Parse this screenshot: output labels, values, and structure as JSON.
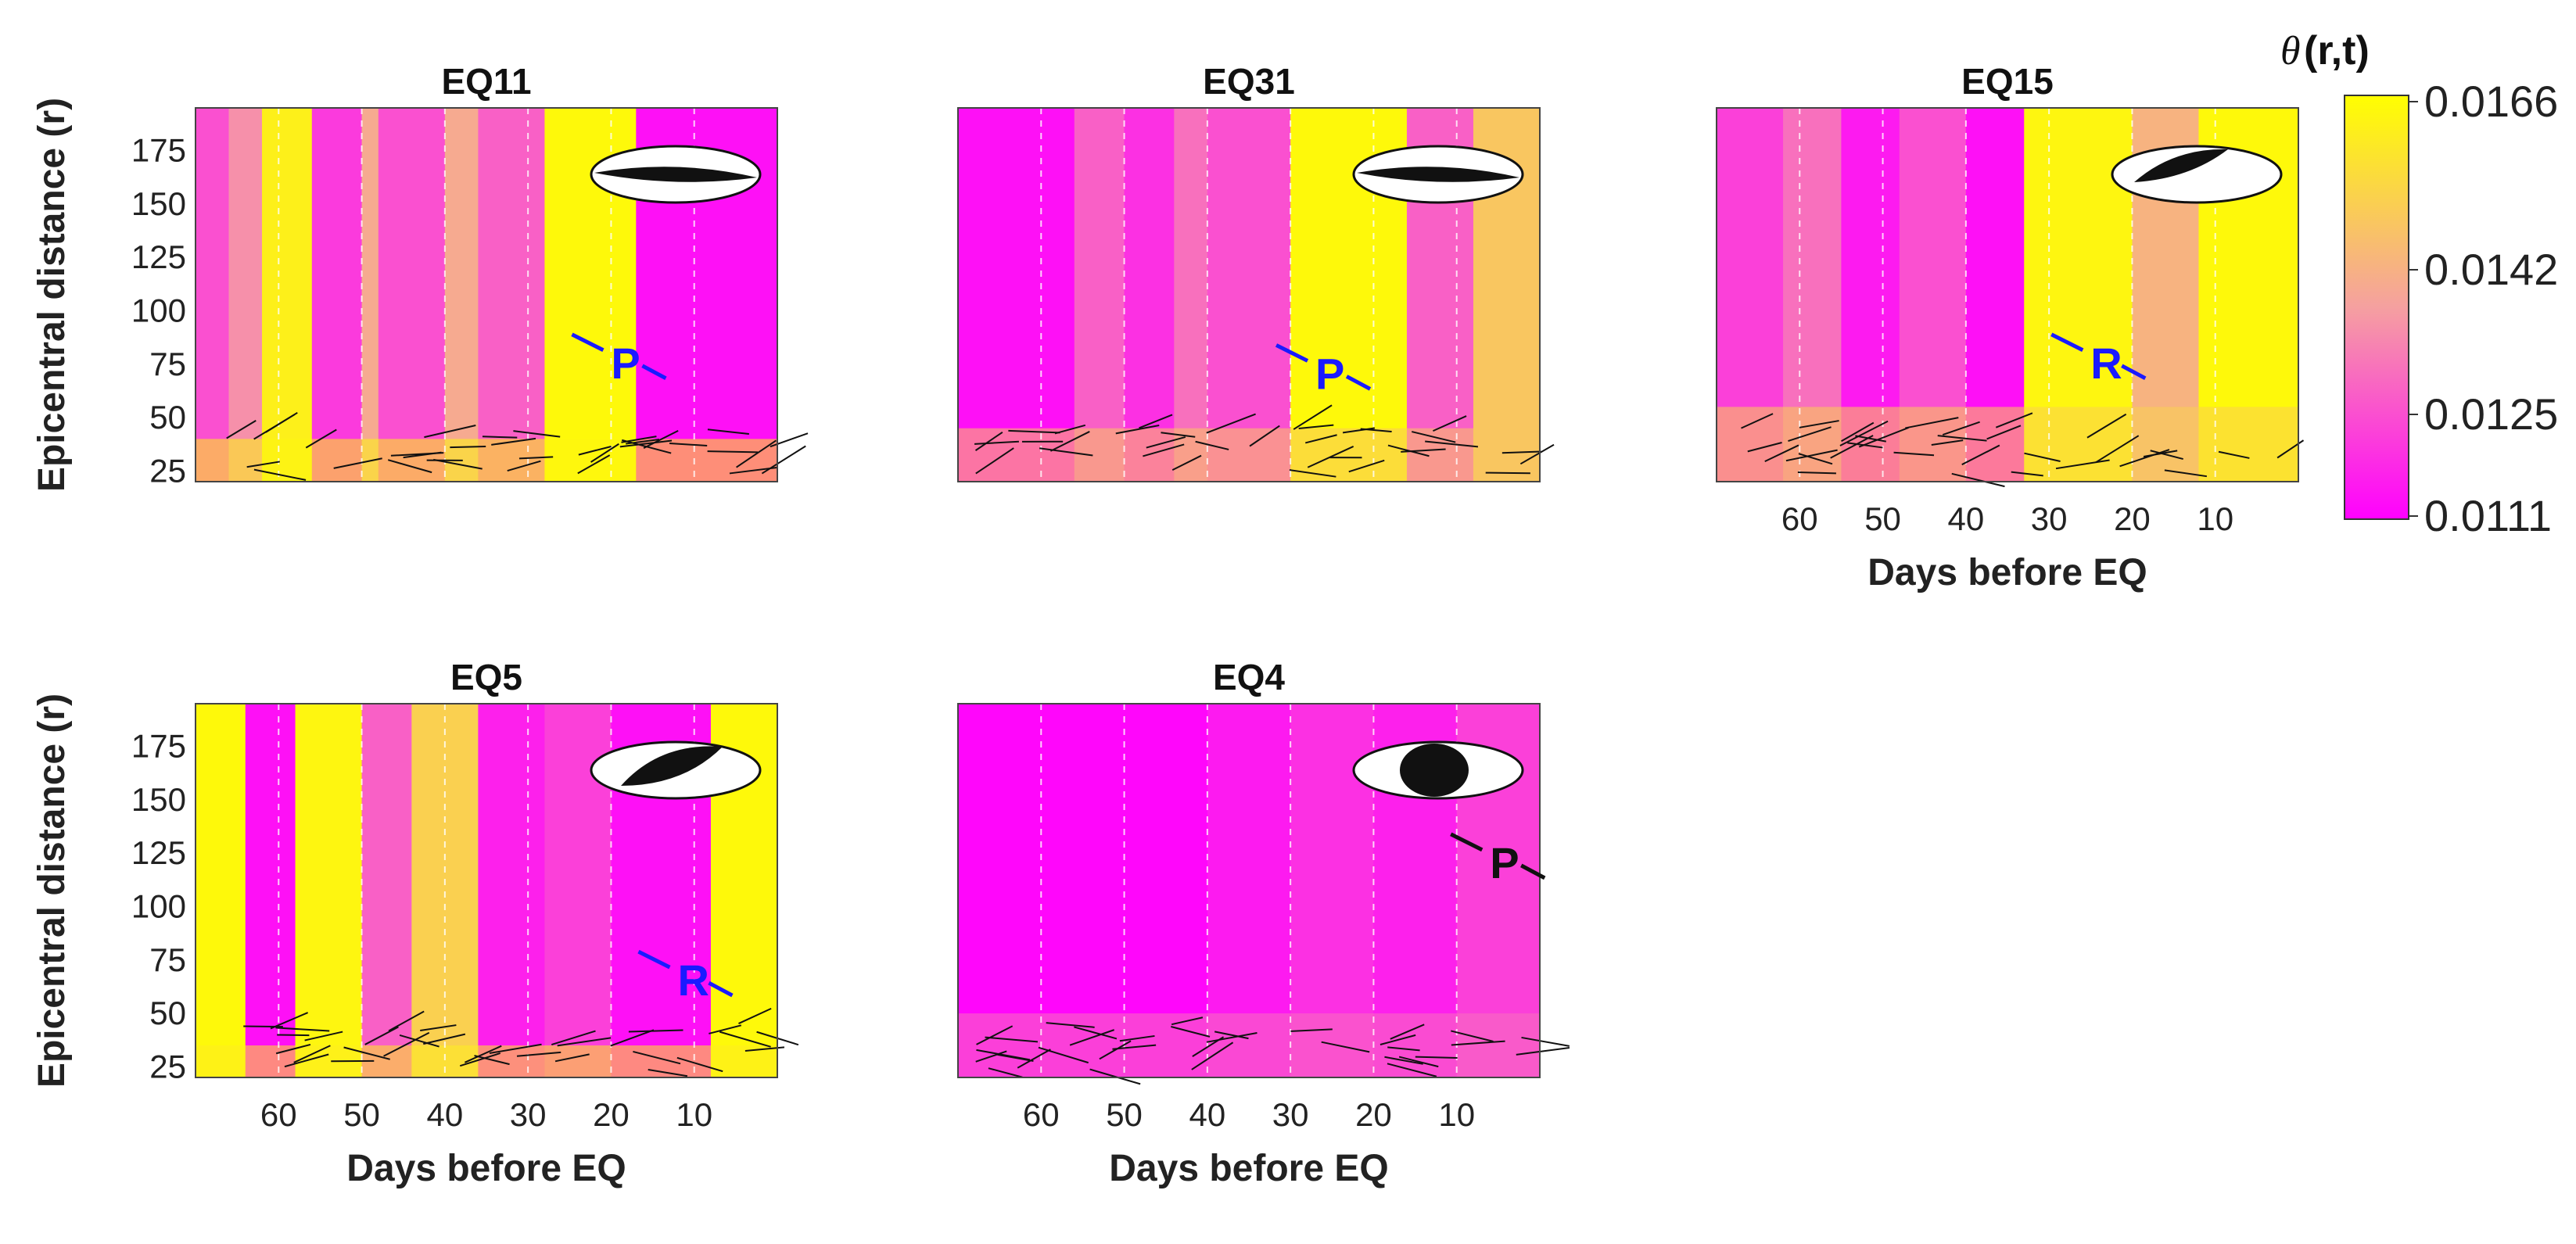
{
  "chart_data": {
    "type": "heatmap",
    "colormap": {
      "low": "#ff00ff",
      "mid": "#f5a0a0",
      "high": "#ffff00"
    },
    "colorbar": {
      "label_symbol": "θ",
      "label_suffix": "(r,t)",
      "ticks": [
        "0.0166",
        "0.0142",
        "0.0125",
        "0.0111"
      ],
      "range": [
        0.0111,
        0.0166
      ]
    },
    "xlabel": "Days before EQ",
    "ylabel": "Epicentral distance (r)",
    "x_ticks": [
      60,
      50,
      40,
      30,
      20,
      10
    ],
    "x_range": [
      70,
      0
    ],
    "y_ticks": [
      25,
      50,
      75,
      100,
      125,
      150,
      175
    ],
    "y_range": [
      20,
      195
    ],
    "panels": [
      {
        "id": "EQ11",
        "title": "EQ11",
        "show_ylabel": true,
        "show_xaxis": false,
        "bands": [
          [
            70,
            66,
            0.25
          ],
          [
            66,
            62,
            0.45
          ],
          [
            62,
            56,
            0.92
          ],
          [
            56,
            50,
            0.18
          ],
          [
            50,
            48,
            0.55
          ],
          [
            48,
            40,
            0.25
          ],
          [
            40,
            36,
            0.55
          ],
          [
            36,
            28,
            0.3
          ],
          [
            28,
            17,
            0.97
          ],
          [
            17,
            0,
            0.05
          ]
        ],
        "low_zone": {
          "y_max": 40,
          "value": 0.95
        },
        "markers": [
          {
            "label": "P",
            "day": 20,
            "r": 75,
            "color": "#1a1aff"
          }
        ],
        "beachball": {
          "fill": "full-lower"
        }
      },
      {
        "id": "EQ31",
        "title": "EQ31",
        "show_ylabel": false,
        "show_xaxis": false,
        "bands": [
          [
            70,
            56,
            0.05
          ],
          [
            56,
            50,
            0.3
          ],
          [
            50,
            44,
            0.15
          ],
          [
            44,
            40,
            0.35
          ],
          [
            40,
            30,
            0.25
          ],
          [
            30,
            16,
            0.97
          ],
          [
            16,
            8,
            0.3
          ],
          [
            8,
            0,
            0.7
          ]
        ],
        "low_zone": {
          "y_max": 45,
          "value": 0.7
        },
        "markers": [
          {
            "label": "P",
            "day": 27,
            "r": 70,
            "color": "#1a1aff"
          }
        ],
        "beachball": {
          "fill": "full-lower"
        }
      },
      {
        "id": "EQ15",
        "title": "EQ15",
        "show_ylabel": false,
        "show_xaxis": true,
        "bands": [
          [
            70,
            62,
            0.2
          ],
          [
            62,
            55,
            0.35
          ],
          [
            55,
            48,
            0.08
          ],
          [
            48,
            40,
            0.25
          ],
          [
            40,
            33,
            0.05
          ],
          [
            33,
            20,
            0.95
          ],
          [
            20,
            12,
            0.6
          ],
          [
            12,
            0,
            0.97
          ]
        ],
        "low_zone": {
          "y_max": 55,
          "value": 0.75
        },
        "markers": [
          {
            "label": "R",
            "day": 25,
            "r": 75,
            "color": "#1a1aff"
          }
        ],
        "beachball": {
          "fill": "quadrant"
        }
      },
      {
        "id": "EQ5",
        "title": "EQ5",
        "show_ylabel": true,
        "show_xaxis": true,
        "bands": [
          [
            70,
            64,
            0.97
          ],
          [
            64,
            58,
            0.05
          ],
          [
            58,
            50,
            0.95
          ],
          [
            50,
            44,
            0.3
          ],
          [
            44,
            36,
            0.75
          ],
          [
            36,
            28,
            0.1
          ],
          [
            28,
            20,
            0.2
          ],
          [
            20,
            8,
            0.05
          ],
          [
            8,
            0,
            0.97
          ]
        ],
        "low_zone": {
          "y_max": 35,
          "value": 0.9
        },
        "markers": [
          {
            "label": "R",
            "day": 12,
            "r": 65,
            "color": "#1a1aff"
          }
        ],
        "beachball": {
          "fill": "diagonal"
        }
      },
      {
        "id": "EQ4",
        "title": "EQ4",
        "show_ylabel": false,
        "show_xaxis": true,
        "bands": [
          [
            70,
            40,
            0.02
          ],
          [
            40,
            30,
            0.08
          ],
          [
            30,
            20,
            0.15
          ],
          [
            20,
            10,
            0.1
          ],
          [
            10,
            0,
            0.2
          ]
        ],
        "low_zone": {
          "y_max": 50,
          "value": 0.35
        },
        "markers": [
          {
            "label": "P",
            "day": 6,
            "r": 120,
            "color": "#111111"
          }
        ],
        "beachball": {
          "fill": "center"
        }
      }
    ]
  }
}
